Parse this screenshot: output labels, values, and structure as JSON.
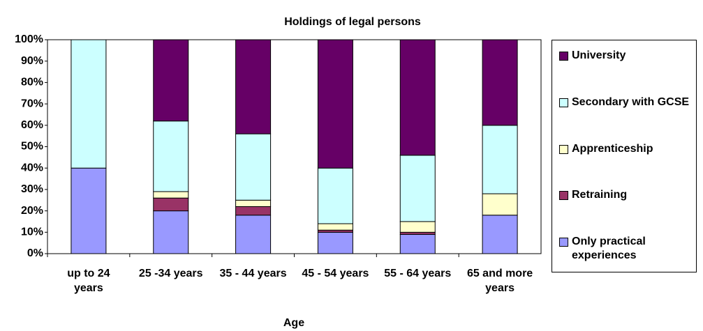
{
  "chart_data": {
    "type": "stacked_bar_100",
    "title": "Holdings of legal persons",
    "x_label": "Age",
    "categories": [
      "up to 24 years",
      "25 -34 years",
      "35 - 44 years",
      "45 - 54 years",
      "55 - 64 years",
      "65 and more years"
    ],
    "series": [
      {
        "name": "Only practical experiences",
        "color": "#9999ff",
        "values": [
          40,
          20,
          18,
          10,
          9,
          18
        ]
      },
      {
        "name": "Retraining",
        "color": "#993366",
        "values": [
          0,
          6,
          4,
          1,
          1,
          0
        ]
      },
      {
        "name": "Apprenticeship",
        "color": "#ffffcc",
        "values": [
          0,
          3,
          3,
          3,
          5,
          10
        ]
      },
      {
        "name": "Secondary with GCSE",
        "color": "#ccffff",
        "values": [
          60,
          33,
          31,
          26,
          31,
          32
        ]
      },
      {
        "name": "University",
        "color": "#660066",
        "values": [
          0,
          38,
          44,
          60,
          54,
          40
        ]
      }
    ],
    "ylim": [
      0,
      100
    ],
    "yticks": [
      {
        "value": 0,
        "label": "0%"
      },
      {
        "value": 10,
        "label": "10%"
      },
      {
        "value": 20,
        "label": "20%"
      },
      {
        "value": 30,
        "label": "30%"
      },
      {
        "value": 40,
        "label": "40%"
      },
      {
        "value": 50,
        "label": "50%"
      },
      {
        "value": 60,
        "label": "60%"
      },
      {
        "value": 70,
        "label": "70%"
      },
      {
        "value": 80,
        "label": "80%"
      },
      {
        "value": 90,
        "label": "90%"
      },
      {
        "value": 100,
        "label": "100%"
      }
    ],
    "grid": false,
    "legend": "right"
  }
}
